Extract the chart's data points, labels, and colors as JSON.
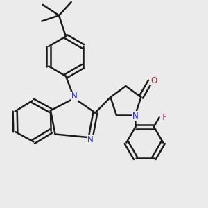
{
  "background_color": "#ebebeb",
  "bond_color": "#1a1a1a",
  "N_color": "#2222bb",
  "O_color": "#cc2222",
  "F_color": "#cc44aa",
  "line_width": 1.8,
  "dbo": 0.055,
  "figsize": [
    3.0,
    3.0
  ],
  "dpi": 100,
  "xlim": [
    -2.6,
    2.8
  ],
  "ylim": [
    -2.8,
    2.6
  ]
}
